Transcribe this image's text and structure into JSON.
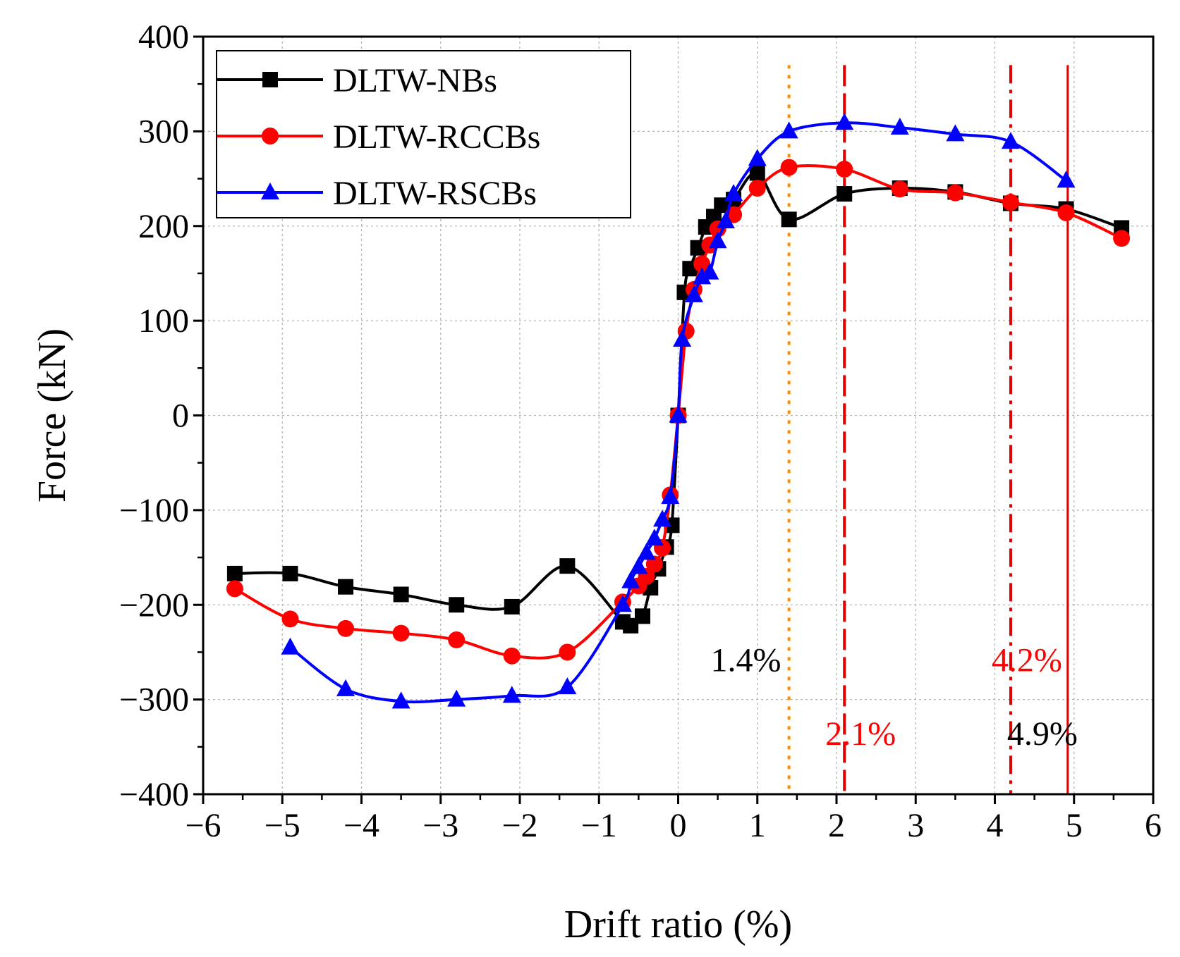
{
  "chart_data": {
    "type": "line",
    "title": "",
    "xlabel": "Drift ratio (%)",
    "ylabel": "Force (kN)",
    "xlim": [
      -6,
      6
    ],
    "ylim": [
      -400,
      400
    ],
    "xticks": [
      -6,
      -5,
      -4,
      -3,
      -2,
      -1,
      0,
      1,
      2,
      3,
      4,
      5,
      6
    ],
    "yticks": [
      -400,
      -300,
      -200,
      -100,
      0,
      100,
      200,
      300,
      400
    ],
    "xtick_labels": [
      "−6",
      "−5",
      "−4",
      "−3",
      "−2",
      "−1",
      "0",
      "1",
      "2",
      "3",
      "4",
      "5",
      "6"
    ],
    "ytick_labels": [
      "−400",
      "−300",
      "−200",
      "−100",
      "0",
      "100",
      "200",
      "300",
      "400"
    ],
    "grid": true,
    "legend_position": "top-left",
    "series": [
      {
        "name": "DLTW-NBs",
        "color": "#000000",
        "marker": "square",
        "x": [
          -5.6,
          -4.9,
          -4.2,
          -3.5,
          -2.8,
          -2.1,
          -1.4,
          -0.7,
          -0.6,
          -0.45,
          -0.35,
          -0.25,
          -0.15,
          -0.08,
          0,
          0.08,
          0.15,
          0.25,
          0.35,
          0.45,
          0.55,
          0.7,
          1.0,
          1.4,
          2.1,
          2.8,
          3.5,
          4.2,
          4.9,
          5.6
        ],
        "y": [
          -167,
          -167,
          -181,
          -189,
          -200,
          -202,
          -159,
          -218,
          -222,
          -212,
          -182,
          -162,
          -139,
          -116,
          0,
          130,
          155,
          177,
          199,
          210,
          222,
          228,
          256,
          207,
          234,
          240,
          236,
          224,
          218,
          198
        ]
      },
      {
        "name": "DLTW-RCCBs",
        "color": "#ff0000",
        "marker": "circle",
        "x": [
          -5.6,
          -4.9,
          -4.2,
          -3.5,
          -2.8,
          -2.1,
          -1.4,
          -0.7,
          -0.5,
          -0.4,
          -0.3,
          -0.2,
          -0.1,
          0,
          0.1,
          0.2,
          0.3,
          0.4,
          0.5,
          0.7,
          1.0,
          1.4,
          2.1,
          2.8,
          3.5,
          4.2,
          4.9,
          5.6
        ],
        "y": [
          -183,
          -215,
          -225,
          -230,
          -237,
          -254,
          -250,
          -197,
          -180,
          -170,
          -157,
          -140,
          -84,
          0,
          89,
          133,
          160,
          180,
          197,
          212,
          240,
          262,
          260,
          239,
          235,
          225,
          214,
          187
        ]
      },
      {
        "name": "DLTW-RSCBs",
        "color": "#0000ff",
        "marker": "triangle",
        "x": [
          -4.9,
          -4.2,
          -3.5,
          -2.8,
          -2.1,
          -1.4,
          -0.7,
          -0.6,
          -0.5,
          -0.4,
          -0.3,
          -0.2,
          -0.1,
          0,
          0.05,
          0.2,
          0.3,
          0.4,
          0.5,
          0.6,
          0.7,
          1.0,
          1.4,
          2.1,
          2.8,
          3.5,
          4.2,
          4.9
        ],
        "y": [
          -245,
          -289,
          -302,
          -300,
          -296,
          -287,
          -200,
          -175,
          -160,
          -145,
          -130,
          -110,
          -86,
          0,
          80,
          127,
          146,
          151,
          184,
          205,
          234,
          271,
          300,
          309,
          304,
          297,
          289,
          248
        ]
      }
    ],
    "reference_lines": [
      {
        "x": 1.4,
        "color": "#ff8c00",
        "style": "dotted"
      },
      {
        "x": 2.1,
        "color": "#e00000",
        "style": "dashed"
      },
      {
        "x": 4.2,
        "color": "#e00000",
        "style": "dashdot"
      },
      {
        "x": 4.92,
        "color": "#e00000",
        "style": "solid"
      }
    ],
    "annotations": [
      {
        "text": "1.4%",
        "x": 1.3,
        "y": -270,
        "color": "#000000",
        "anchor": "end"
      },
      {
        "text": "2.1%",
        "x": 2.75,
        "y": -348,
        "color": "#ff0000",
        "anchor": "end"
      },
      {
        "text": "4.2%",
        "x": 4.85,
        "y": -270,
        "color": "#ff0000",
        "anchor": "end"
      },
      {
        "text": "4.9%",
        "x": 4.6,
        "y": -348,
        "color": "#000000",
        "anchor": "middle"
      }
    ]
  }
}
